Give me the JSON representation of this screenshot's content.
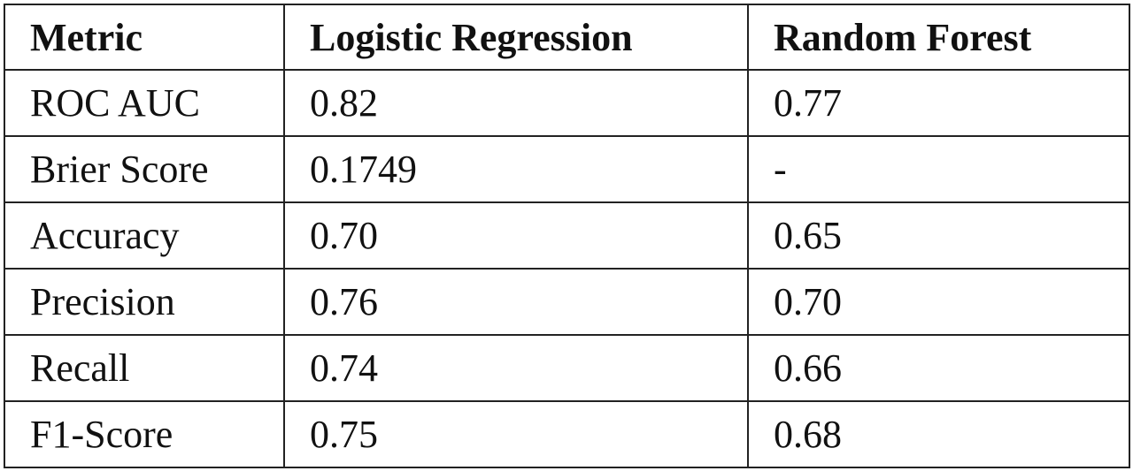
{
  "table": {
    "headers": [
      "Metric",
      "Logistic Regression",
      "Random Forest"
    ],
    "rows": [
      {
        "metric": "ROC AUC",
        "logistic_regression": "0.82",
        "random_forest": "0.77"
      },
      {
        "metric": "Brier Score",
        "logistic_regression": "0.1749",
        "random_forest": "-"
      },
      {
        "metric": "Accuracy",
        "logistic_regression": "0.70",
        "random_forest": "0.65"
      },
      {
        "metric": "Precision",
        "logistic_regression": "0.76",
        "random_forest": "0.70"
      },
      {
        "metric": "Recall",
        "logistic_regression": "0.74",
        "random_forest": "0.66"
      },
      {
        "metric": "F1-Score",
        "logistic_regression": "0.75",
        "random_forest": "0.68"
      }
    ]
  }
}
